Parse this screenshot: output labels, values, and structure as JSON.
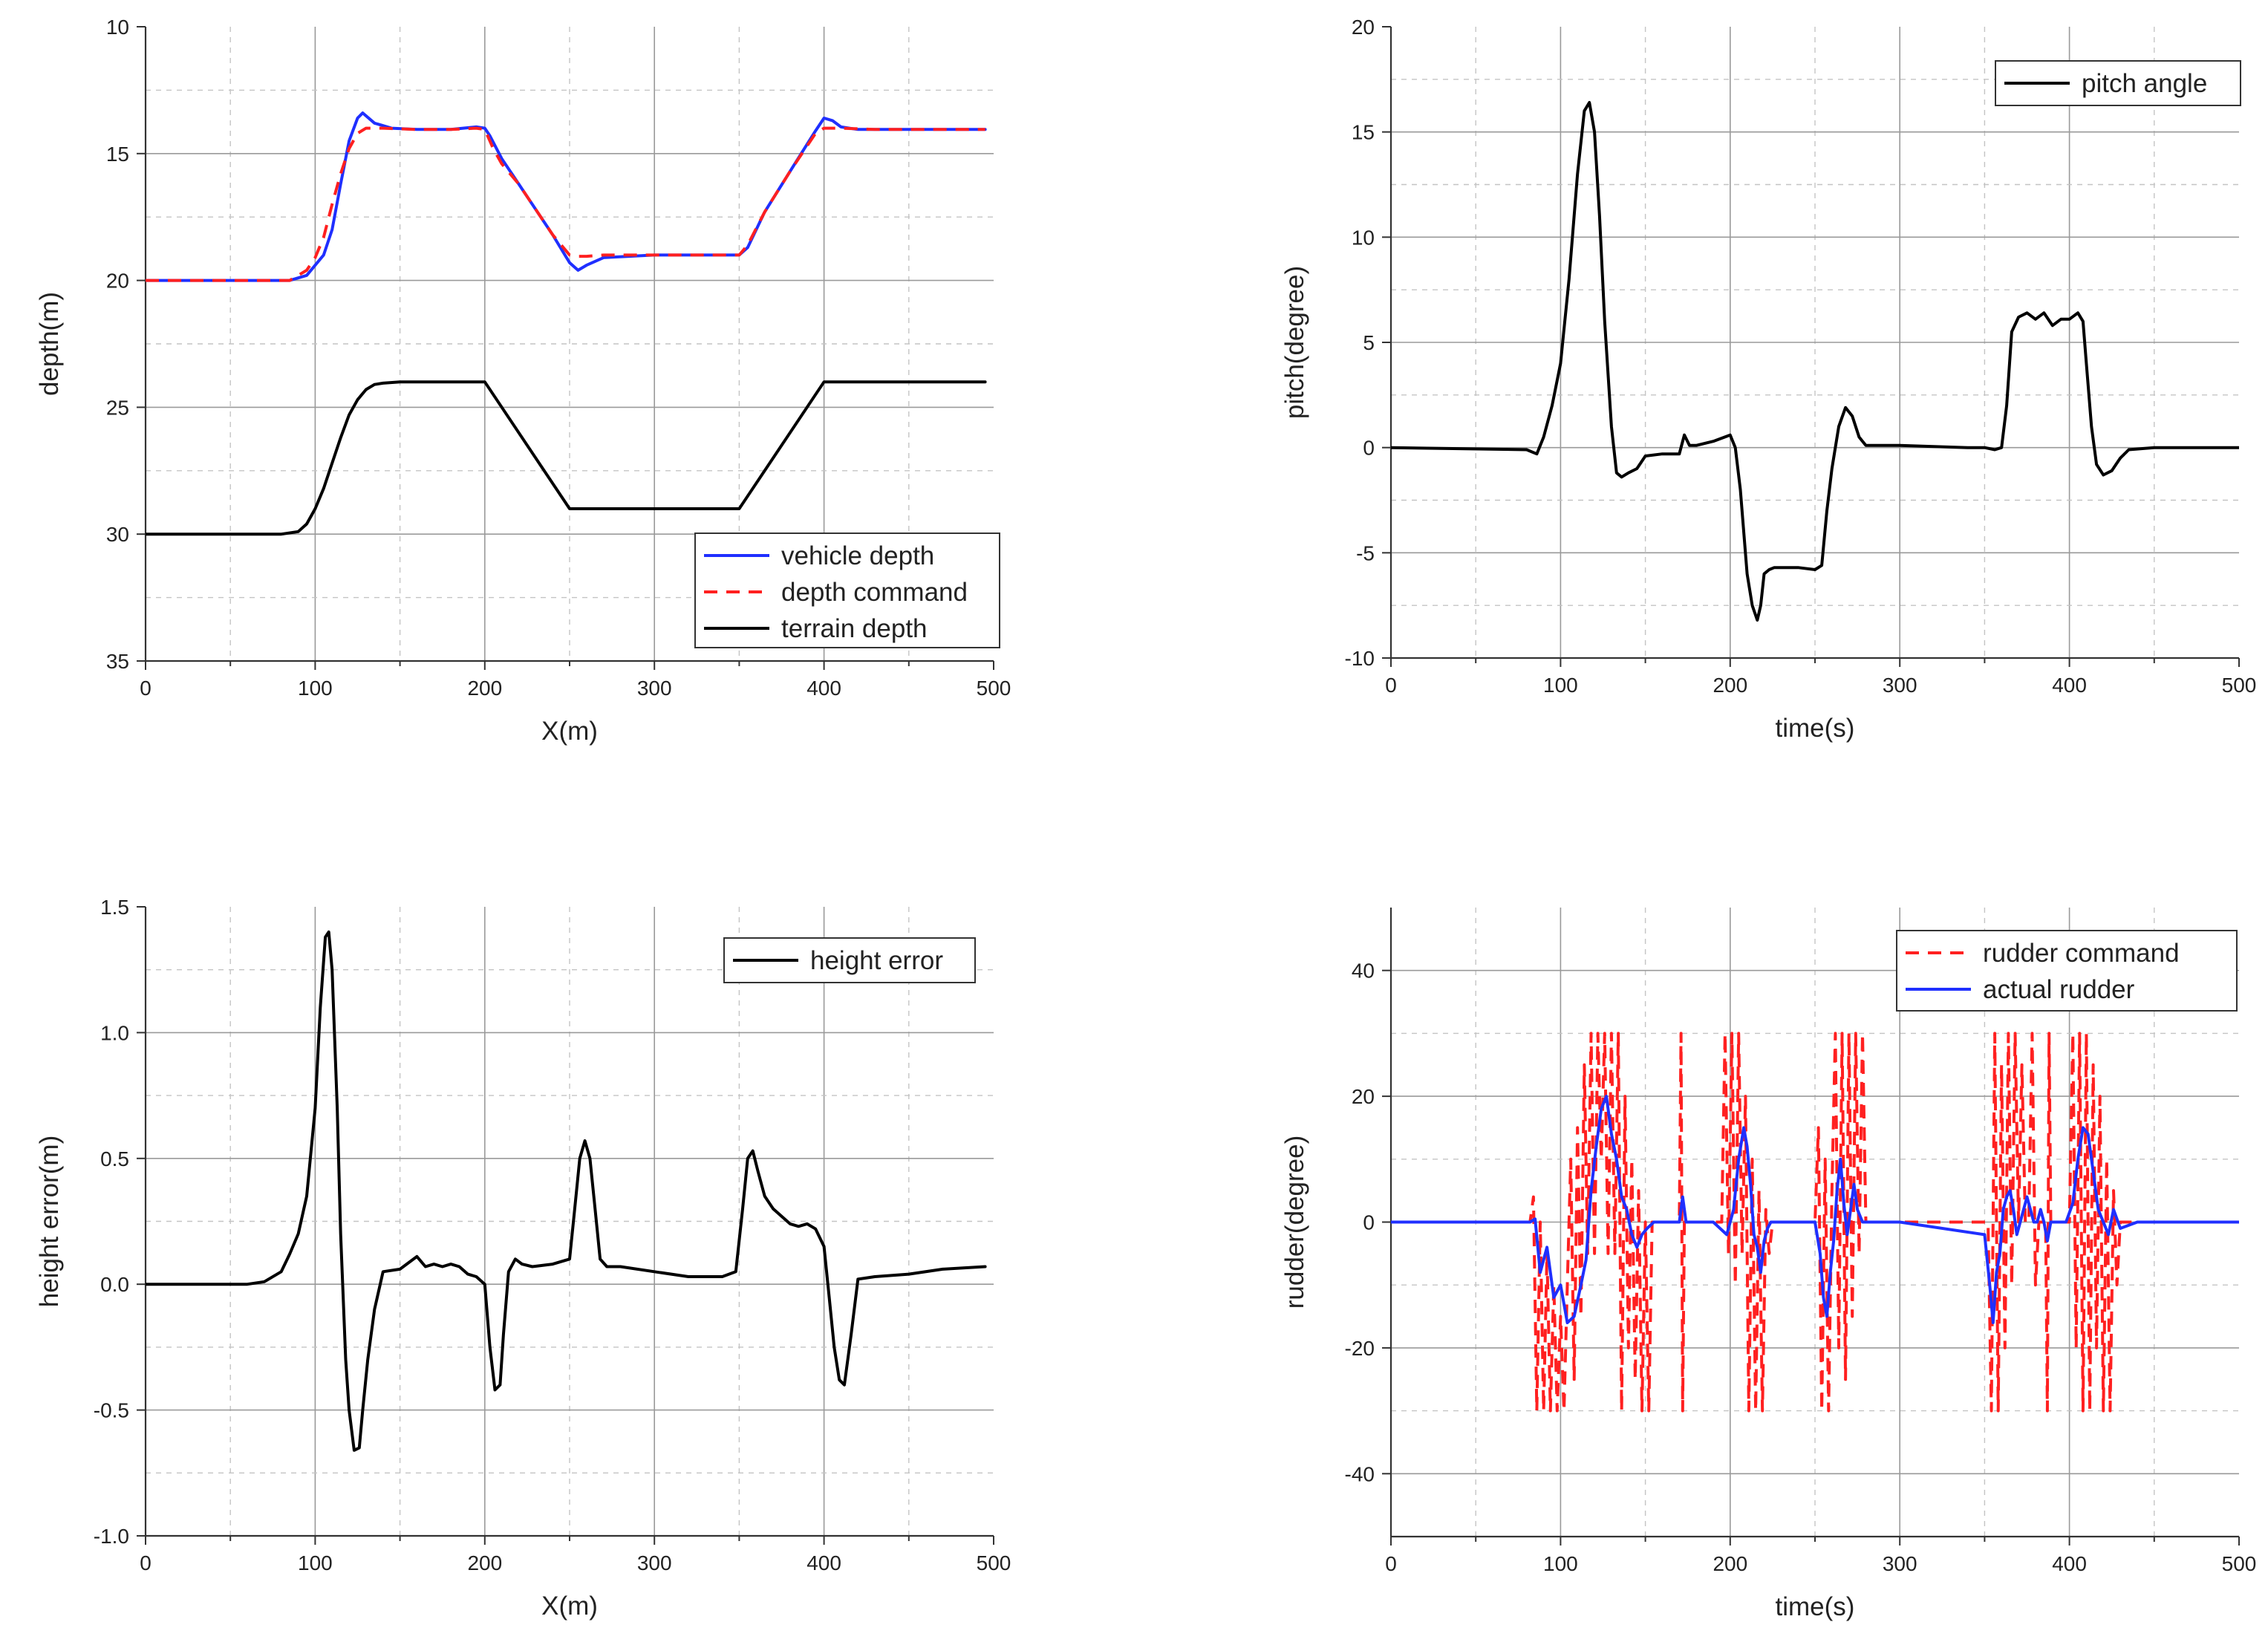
{
  "chart_data": [
    {
      "id": "depth",
      "type": "line",
      "title": "",
      "xlabel": "X(m)",
      "ylabel": "depth(m)",
      "xlim": [
        0,
        500
      ],
      "ylim": [
        10,
        35
      ],
      "y_inverted": true,
      "xticks": [
        0,
        100,
        200,
        300,
        400,
        500
      ],
      "yticks": [
        10,
        15,
        20,
        25,
        30,
        35
      ],
      "grid": true,
      "legend_position": "bottom-right",
      "series": [
        {
          "name": "vehicle depth",
          "color": "#1f2fff",
          "style": "solid",
          "x": [
            0,
            85,
            95,
            105,
            110,
            115,
            120,
            125,
            128,
            135,
            145,
            160,
            180,
            195,
            200,
            203,
            210,
            220,
            240,
            250,
            255,
            260,
            270,
            300,
            340,
            350,
            355,
            365,
            380,
            395,
            400,
            405,
            410,
            420,
            440,
            470,
            495
          ],
          "y": [
            20,
            20,
            19.8,
            19,
            18,
            16.2,
            14.5,
            13.6,
            13.4,
            13.8,
            14,
            14.05,
            14.05,
            13.95,
            14,
            14.3,
            15.2,
            16.2,
            18.2,
            19.3,
            19.6,
            19.4,
            19.1,
            19,
            19,
            19,
            18.7,
            17.3,
            15.7,
            14.1,
            13.6,
            13.7,
            13.95,
            14.05,
            14.05,
            14.05,
            14.05
          ]
        },
        {
          "name": "depth command",
          "color": "#ff2020",
          "style": "dashed",
          "x": [
            0,
            85,
            95,
            100,
            105,
            110,
            115,
            120,
            125,
            130,
            140,
            160,
            180,
            195,
            200,
            205,
            210,
            220,
            240,
            250,
            255,
            260,
            270,
            300,
            340,
            350,
            355,
            365,
            380,
            395,
            400,
            410,
            430,
            470,
            495
          ],
          "y": [
            20,
            20,
            19.6,
            19.1,
            18.3,
            17,
            15.8,
            14.8,
            14.2,
            14,
            14,
            14.05,
            14.05,
            14,
            14.05,
            14.8,
            15.4,
            16.2,
            18.2,
            19,
            19.05,
            19.05,
            19,
            19,
            19,
            19,
            18.6,
            17.3,
            15.7,
            14.2,
            14,
            14,
            14.05,
            14.05,
            14.05
          ]
        },
        {
          "name": "terrain depth",
          "color": "#000000",
          "style": "solid",
          "x": [
            0,
            80,
            90,
            95,
            100,
            105,
            110,
            115,
            120,
            125,
            130,
            135,
            140,
            150,
            200,
            250,
            350,
            400,
            495
          ],
          "y": [
            30,
            30,
            29.9,
            29.6,
            29,
            28.2,
            27.2,
            26.2,
            25.3,
            24.7,
            24.3,
            24.1,
            24.05,
            24,
            24,
            29,
            29,
            24,
            24
          ]
        }
      ]
    },
    {
      "id": "pitch",
      "type": "line",
      "title": "",
      "xlabel": "time(s)",
      "ylabel": "pitch(degree)",
      "xlim": [
        0,
        500
      ],
      "ylim": [
        -10,
        20
      ],
      "y_inverted": false,
      "xticks": [
        0,
        100,
        200,
        300,
        400,
        500
      ],
      "yticks": [
        -10,
        -5,
        0,
        5,
        10,
        15,
        20
      ],
      "grid": true,
      "legend_position": "top-right",
      "series": [
        {
          "name": "pitch angle",
          "color": "#000000",
          "style": "solid",
          "x": [
            0,
            80,
            86,
            90,
            95,
            100,
            105,
            110,
            114,
            117,
            120,
            123,
            126,
            130,
            133,
            136,
            140,
            145,
            150,
            160,
            170,
            173,
            176,
            180,
            190,
            200,
            203,
            206,
            210,
            213,
            216,
            218,
            220,
            223,
            226,
            230,
            240,
            250,
            254,
            257,
            260,
            264,
            268,
            272,
            276,
            280,
            300,
            340,
            350,
            356,
            360,
            363,
            366,
            370,
            375,
            380,
            385,
            390,
            395,
            400,
            405,
            408,
            410,
            413,
            416,
            420,
            425,
            430,
            435,
            450,
            500
          ],
          "y": [
            0,
            -0.1,
            -0.3,
            0.5,
            2,
            4,
            8,
            13,
            16,
            16.4,
            15,
            11,
            6,
            1,
            -1.2,
            -1.4,
            -1.2,
            -1,
            -0.4,
            -0.3,
            -0.3,
            0.6,
            0.1,
            0.1,
            0.3,
            0.6,
            0,
            -2,
            -6,
            -7.5,
            -8.2,
            -7.5,
            -6,
            -5.8,
            -5.7,
            -5.7,
            -5.7,
            -5.8,
            -5.6,
            -3,
            -1,
            1,
            1.9,
            1.5,
            0.5,
            0.1,
            0.1,
            0,
            0,
            -0.1,
            0,
            2,
            5.5,
            6.2,
            6.4,
            6.1,
            6.4,
            5.8,
            6.1,
            6.1,
            6.4,
            6,
            4,
            1,
            -0.8,
            -1.3,
            -1.1,
            -0.5,
            -0.1,
            0,
            0
          ]
        }
      ]
    },
    {
      "id": "height-error",
      "type": "line",
      "title": "",
      "xlabel": "X(m)",
      "ylabel": "height error(m)",
      "xlim": [
        0,
        500
      ],
      "ylim": [
        -1.0,
        1.5
      ],
      "y_inverted": false,
      "xticks": [
        0,
        100,
        200,
        300,
        400,
        500
      ],
      "yticks": [
        -1.0,
        -0.5,
        0.0,
        0.5,
        1.0,
        1.5
      ],
      "ytick_labels": [
        "-1.0",
        "-0.5",
        "0.0",
        "0.5",
        "1.0",
        "1.5"
      ],
      "grid": true,
      "legend_position": "top-right",
      "series": [
        {
          "name": "height error",
          "color": "#000000",
          "style": "solid",
          "x": [
            0,
            60,
            70,
            80,
            85,
            90,
            95,
            100,
            103,
            106,
            108,
            110,
            113,
            115,
            118,
            120,
            123,
            126,
            128,
            131,
            135,
            140,
            150,
            160,
            165,
            170,
            175,
            180,
            185,
            190,
            195,
            200,
            203,
            206,
            209,
            211,
            214,
            218,
            222,
            228,
            240,
            250,
            253,
            256,
            259,
            262,
            265,
            268,
            272,
            280,
            300,
            320,
            340,
            348,
            352,
            355,
            358,
            361,
            365,
            370,
            380,
            385,
            390,
            395,
            400,
            403,
            406,
            409,
            412,
            416,
            420,
            430,
            450,
            470,
            495
          ],
          "y": [
            0,
            0,
            0.01,
            0.05,
            0.12,
            0.2,
            0.35,
            0.7,
            1.1,
            1.38,
            1.4,
            1.25,
            0.7,
            0.2,
            -0.3,
            -0.5,
            -0.66,
            -0.65,
            -0.5,
            -0.3,
            -0.1,
            0.05,
            0.06,
            0.11,
            0.07,
            0.08,
            0.07,
            0.08,
            0.07,
            0.04,
            0.03,
            0.0,
            -0.25,
            -0.42,
            -0.4,
            -0.2,
            0.05,
            0.1,
            0.08,
            0.07,
            0.08,
            0.1,
            0.3,
            0.5,
            0.57,
            0.5,
            0.3,
            0.1,
            0.07,
            0.07,
            0.05,
            0.03,
            0.03,
            0.05,
            0.3,
            0.5,
            0.53,
            0.45,
            0.35,
            0.3,
            0.24,
            0.23,
            0.24,
            0.22,
            0.15,
            -0.05,
            -0.25,
            -0.38,
            -0.4,
            -0.2,
            0.02,
            0.03,
            0.04,
            0.06,
            0.07
          ]
        }
      ]
    },
    {
      "id": "rudder",
      "type": "line",
      "title": "",
      "xlabel": "time(s)",
      "ylabel": "rudder(degree)",
      "xlim": [
        0,
        500
      ],
      "ylim": [
        -50,
        50
      ],
      "y_inverted": false,
      "xticks": [
        0,
        100,
        200,
        300,
        400,
        500
      ],
      "yticks": [
        -40,
        -20,
        0,
        20,
        40
      ],
      "grid": true,
      "legend_position": "top-right",
      "series": [
        {
          "name": "rudder command",
          "color": "#ff2020",
          "style": "dashed",
          "x": [
            0,
            82,
            84,
            86,
            88,
            90,
            92,
            94,
            96,
            98,
            100,
            102,
            104,
            106,
            108,
            110,
            112,
            114,
            116,
            118,
            120,
            122,
            124,
            126,
            128,
            130,
            132,
            134,
            136,
            138,
            140,
            142,
            144,
            146,
            148,
            150,
            152,
            154,
            160,
            170,
            171,
            172,
            173,
            174,
            180,
            195,
            197,
            199,
            201,
            203,
            205,
            207,
            209,
            211,
            213,
            215,
            217,
            219,
            221,
            223,
            225,
            235,
            250,
            252,
            254,
            256,
            258,
            260,
            262,
            264,
            266,
            268,
            270,
            272,
            274,
            276,
            278,
            280,
            300,
            350,
            352,
            354,
            356,
            358,
            360,
            362,
            364,
            366,
            368,
            370,
            372,
            374,
            376,
            378,
            380,
            382,
            384,
            386,
            387,
            388,
            389,
            390,
            395,
            400,
            402,
            404,
            406,
            408,
            410,
            412,
            414,
            416,
            418,
            420,
            422,
            424,
            426,
            428,
            430,
            440,
            450,
            500
          ],
          "y": [
            0,
            0,
            4,
            -30,
            0,
            -30,
            -5,
            -30,
            -10,
            -30,
            -15,
            -30,
            -10,
            10,
            -25,
            15,
            -15,
            25,
            -5,
            30,
            -5,
            30,
            10,
            30,
            -5,
            30,
            -5,
            30,
            -30,
            20,
            -20,
            10,
            -25,
            5,
            -30,
            0,
            -30,
            0,
            0,
            0,
            30,
            -30,
            0,
            0,
            0,
            0,
            30,
            -5,
            30,
            -10,
            30,
            -5,
            20,
            -30,
            10,
            -30,
            5,
            -30,
            2,
            -5,
            0,
            0,
            0,
            15,
            -30,
            10,
            -30,
            5,
            30,
            -20,
            30,
            -25,
            30,
            -15,
            30,
            -5,
            30,
            0,
            0,
            0,
            0,
            -30,
            30,
            -30,
            25,
            -20,
            30,
            -10,
            30,
            0,
            25,
            0,
            0,
            30,
            -10,
            0,
            0,
            0,
            -30,
            30,
            0,
            0,
            0,
            0,
            30,
            -20,
            30,
            -30,
            30,
            -30,
            25,
            -20,
            20,
            -30,
            10,
            -30,
            5,
            -10,
            0,
            0,
            0,
            0
          ]
        },
        {
          "name": "actual rudder",
          "color": "#1f2fff",
          "style": "solid",
          "x": [
            0,
            82,
            85,
            88,
            92,
            96,
            100,
            104,
            108,
            112,
            115,
            118,
            121,
            124,
            127,
            130,
            133,
            136,
            139,
            142,
            145,
            148,
            151,
            155,
            160,
            170,
            172,
            174,
            178,
            190,
            198,
            202,
            205,
            208,
            210,
            212,
            214,
            216,
            218,
            220,
            222,
            224,
            228,
            240,
            250,
            253,
            255,
            257,
            259,
            261,
            263,
            265,
            267,
            269,
            271,
            273,
            275,
            278,
            285,
            300,
            350,
            353,
            355,
            357,
            359,
            361,
            363,
            365,
            367,
            369,
            371,
            373,
            375,
            377,
            379,
            381,
            383,
            385,
            387,
            389,
            392,
            398,
            402,
            405,
            408,
            411,
            414,
            417,
            420,
            423,
            426,
            430,
            440,
            460,
            500
          ],
          "y": [
            0,
            0,
            0.5,
            -8,
            -4,
            -12,
            -10,
            -16,
            -15,
            -10,
            -6,
            5,
            12,
            18,
            20,
            14,
            10,
            4,
            2,
            -2,
            -4,
            -2,
            -1,
            0,
            0,
            0,
            4,
            0,
            0,
            0,
            -2,
            2,
            10,
            15,
            12,
            6,
            -2,
            -4,
            -8,
            -3,
            -1,
            0,
            0,
            0,
            0,
            -5,
            -12,
            -15,
            -8,
            -3,
            5,
            10,
            3,
            -2,
            2,
            6,
            2,
            0,
            0,
            0,
            -2,
            -10,
            -16,
            -8,
            -5,
            2,
            4,
            5,
            2,
            -2,
            0,
            2,
            4,
            2,
            0,
            0,
            2,
            0,
            -3,
            0,
            0,
            0,
            3,
            10,
            15,
            14,
            8,
            2,
            0,
            -2,
            2,
            -1,
            0,
            0,
            0
          ]
        }
      ]
    }
  ]
}
